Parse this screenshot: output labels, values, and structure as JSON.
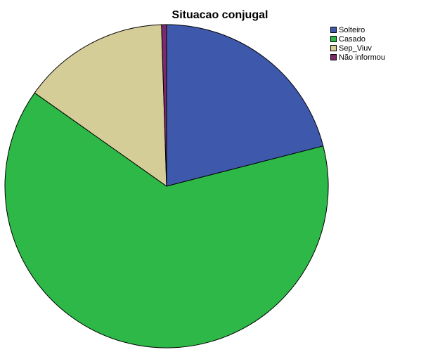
{
  "chart_data": {
    "type": "pie",
    "title": "Situacao conjugal",
    "legend_position": "top-right",
    "series": [
      {
        "name": "Solteiro",
        "value": 21.0,
        "color": "#3e58ac"
      },
      {
        "name": "Casado",
        "value": 63.8,
        "color": "#2eb848"
      },
      {
        "name": "Sep_Viuv",
        "value": 14.7,
        "color": "#d4cd98"
      },
      {
        "name": "Não informou",
        "value": 0.5,
        "color": "#7d2a6c"
      }
    ]
  }
}
